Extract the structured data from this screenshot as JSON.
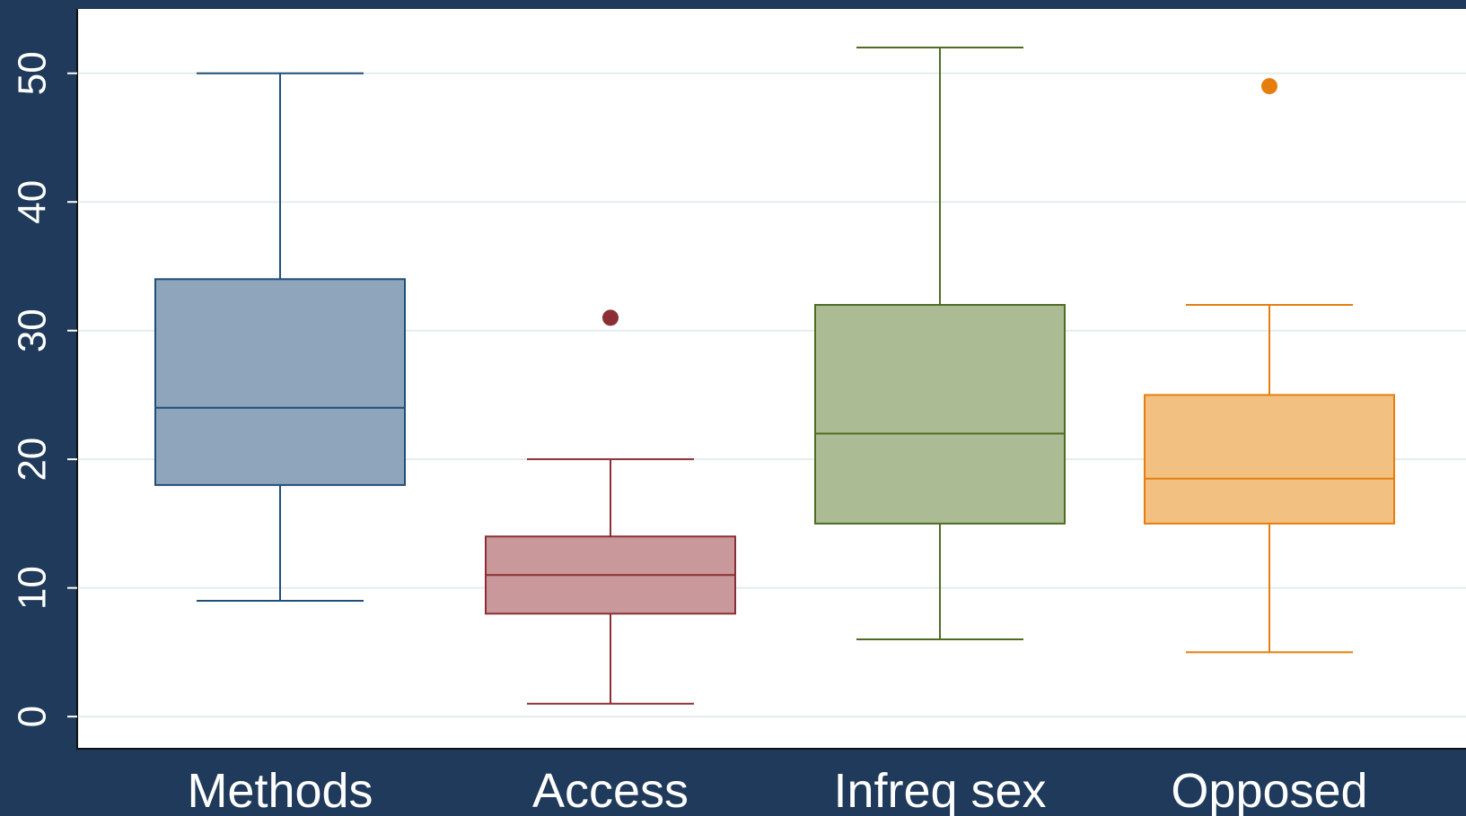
{
  "background_color": "#1f3a5a",
  "plot_background_color": "#ffffff",
  "grid_color": "#e4ecf1",
  "chart_data": {
    "type": "box",
    "title": "",
    "xlabel": "",
    "ylabel": "",
    "ylim": [
      -2.5,
      55
    ],
    "yticks": [
      0,
      10,
      20,
      30,
      40,
      50
    ],
    "ytick_labels": [
      "0",
      "10",
      "20",
      "30",
      "40",
      "50"
    ],
    "grid": true,
    "legend": "none",
    "categories": [
      "Methods",
      "Access",
      "Infreq sex",
      "Opposed"
    ],
    "series": [
      {
        "values": [
          {
            "whisker_low": 9,
            "q1": 18,
            "median": 24,
            "q3": 34,
            "whisker_high": 50,
            "outliers": []
          },
          {
            "whisker_low": 1,
            "q1": 8,
            "median": 11,
            "q3": 14,
            "whisker_high": 20,
            "outliers": [
              31
            ]
          },
          {
            "whisker_low": 6,
            "q1": 15,
            "median": 22,
            "q3": 32,
            "whisker_high": 52,
            "outliers": []
          },
          {
            "whisker_low": 5,
            "q1": 15,
            "median": 18.5,
            "q3": 25,
            "whisker_high": 32,
            "outliers": [
              49
            ]
          }
        ]
      }
    ],
    "colors": {
      "stroke": [
        "#1f4e79",
        "#8b2f35",
        "#4f6d22",
        "#e67e0e"
      ],
      "fill": [
        "#8ea5bb",
        "#c9989b",
        "#abbb94",
        "#f2c081"
      ]
    }
  }
}
